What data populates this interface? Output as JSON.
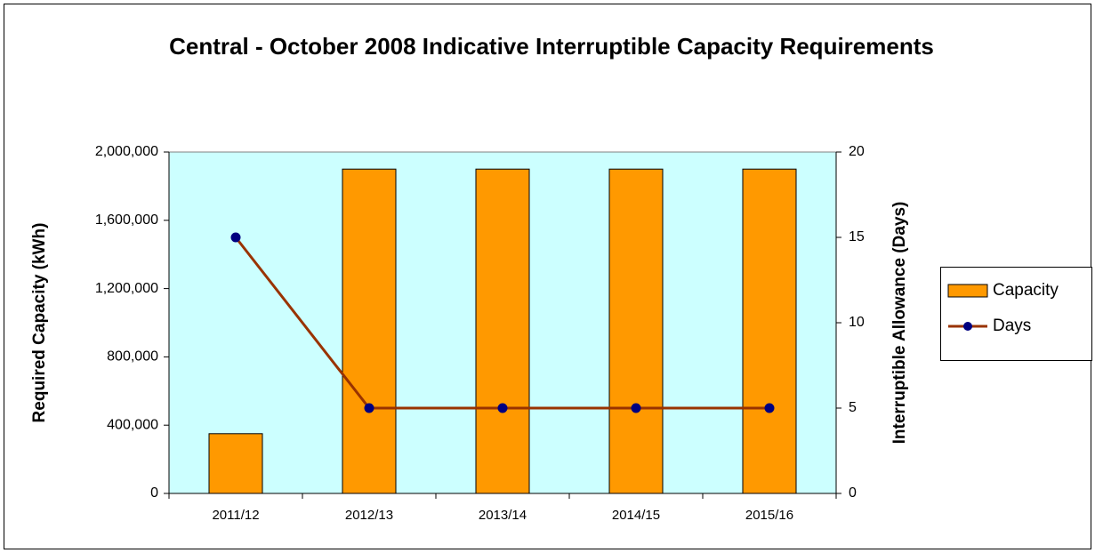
{
  "chart_data": {
    "type": "bar",
    "title": "Central - October 2008 Indicative Interruptible Capacity Requirements",
    "categories": [
      "2011/12",
      "2012/13",
      "2013/14",
      "2014/15",
      "2015/16"
    ],
    "series": [
      {
        "name": "Capacity",
        "type": "bar",
        "color": "#ff9900",
        "values": [
          350000,
          1900000,
          1900000,
          1900000,
          1900000
        ]
      },
      {
        "name": "Days",
        "type": "line",
        "axis": "y2",
        "color": "#993300",
        "marker_color": "#000080",
        "values": [
          15,
          5,
          5,
          5,
          5
        ]
      }
    ],
    "y_label": "Required Capacity (kWh)",
    "y2_label": "Interruptible Allowance (Days)",
    "ylim": [
      0,
      2000000
    ],
    "yticks": [
      0,
      {
        "value": 400000,
        "label": "400,000"
      },
      {
        "value": 800000,
        "label": "800,000"
      },
      {
        "value": 1200000,
        "label": "1,200,000"
      },
      {
        "value": 1600000,
        "label": "1,600,000"
      },
      {
        "value": 2000000,
        "label": "2,000,000"
      }
    ],
    "y2lim": [
      0,
      20
    ],
    "y2ticks": [
      0,
      5,
      10,
      15,
      20
    ],
    "plot_background": "#ccffff",
    "legend": "right"
  }
}
